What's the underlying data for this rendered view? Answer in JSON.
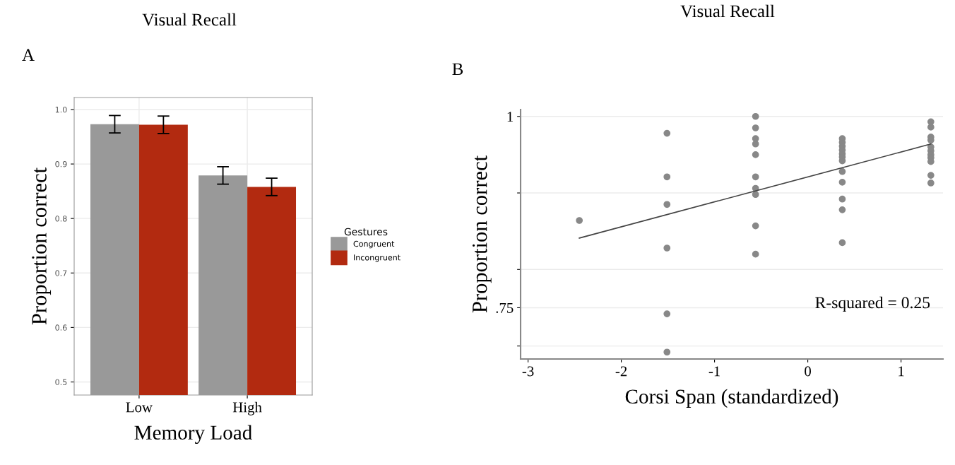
{
  "chart_data": [
    {
      "type": "bar",
      "title": "Visual Recall",
      "subtitle": "A",
      "xlabel": "Memory Load",
      "ylabel": "Proportion correct",
      "legend_title": "Gestures",
      "categories": [
        "Low",
        "High"
      ],
      "series": [
        {
          "name": "Congruent",
          "color": "#999999",
          "values": [
            0.973,
            0.879
          ],
          "errors": [
            0.016,
            0.016
          ]
        },
        {
          "name": "Incongruent",
          "color": "#b22a10",
          "values": [
            0.972,
            0.858
          ],
          "errors": [
            0.016,
            0.016
          ]
        }
      ],
      "ylim": [
        0.476,
        1.022
      ],
      "yticks": [
        0.5,
        0.6,
        0.7,
        0.8,
        0.9,
        {
          "value": 1.0,
          "label": "1.0"
        }
      ],
      "grid": true,
      "legend": "right"
    },
    {
      "type": "scatter",
      "title": "Visual Recall",
      "subtitle": "B",
      "xlabel": "Corsi Span (standardized)",
      "ylabel": "Proportion correct",
      "annotations": [
        "R-squared = 0.25"
      ],
      "series": [
        {
          "color": "#888888",
          "x": [
            -2.45,
            -1.51,
            -1.51,
            -1.51,
            -1.51,
            -1.51,
            -1.51,
            -0.56,
            -0.56,
            -0.56,
            -0.56,
            -0.56,
            -0.56,
            -0.56,
            -0.56,
            -0.56,
            -0.56,
            0.37,
            0.37,
            0.37,
            0.37,
            0.37,
            0.37,
            0.37,
            0.37,
            0.37,
            0.37,
            0.37,
            0.37,
            1.32,
            1.32,
            1.32,
            1.32,
            1.32,
            1.32,
            1.32,
            1.32,
            1.32,
            1.32,
            1.32
          ],
          "values": [
            0.864,
            0.978,
            0.921,
            0.885,
            0.828,
            0.742,
            0.692,
            1.0,
            0.985,
            0.971,
            0.964,
            0.95,
            0.921,
            0.906,
            0.898,
            0.857,
            0.82,
            0.971,
            0.966,
            0.961,
            0.956,
            0.951,
            0.947,
            0.942,
            0.928,
            0.914,
            0.892,
            0.878,
            0.835,
            0.993,
            0.986,
            0.973,
            0.969,
            0.96,
            0.955,
            0.95,
            0.946,
            0.941,
            0.923,
            0.913
          ],
          "marker": "circle"
        },
        {
          "type": "line",
          "color": "#444444",
          "x": [
            -2.45,
            1.32
          ],
          "values": [
            0.841,
            0.964
          ]
        }
      ],
      "xlim": [
        -3.08,
        1.45
      ],
      "xticks": [
        -3,
        -2,
        -1,
        0,
        1
      ],
      "ylim": [
        0.683,
        1.009
      ],
      "yticks": [
        {
          "value": 1,
          "label": "1"
        },
        {
          "value": 0.9,
          "label": null
        },
        {
          "value": 0.8,
          "label": null
        },
        {
          "value": 0.75,
          "label": ".75"
        },
        {
          "value": 0.7,
          "label": null
        }
      ],
      "grid": "y"
    }
  ]
}
